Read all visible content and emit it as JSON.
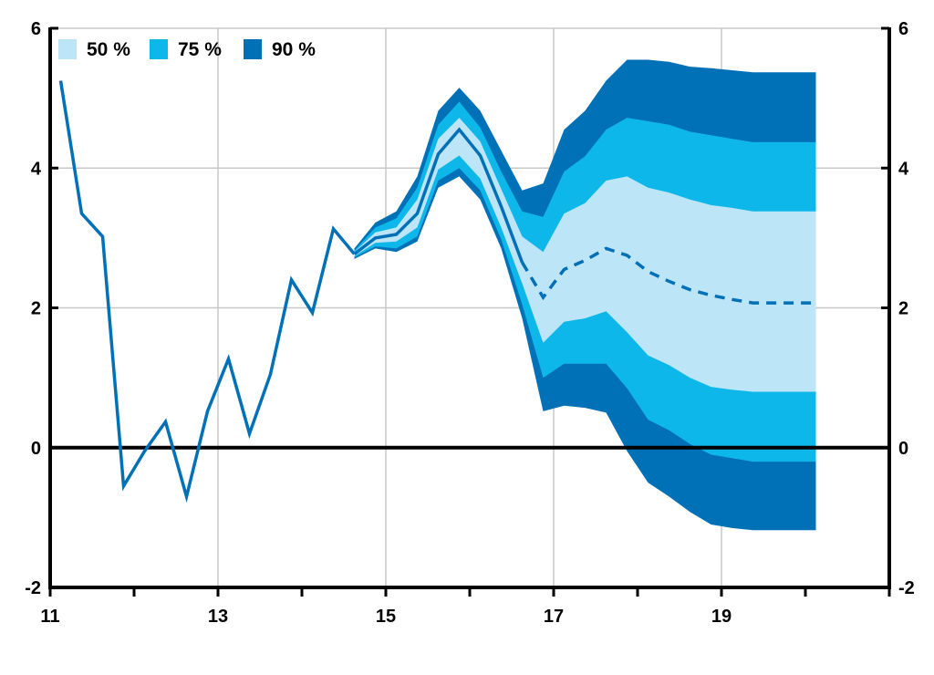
{
  "chart_data": {
    "type": "area",
    "xlim": [
      11,
      21.0
    ],
    "ylim": [
      -2,
      6
    ],
    "x_ticks": [
      11,
      13,
      15,
      17,
      19
    ],
    "x_tick_labels": [
      "11",
      "13",
      "15",
      "17",
      "19"
    ],
    "y_ticks": [
      -2,
      0,
      2,
      4,
      6
    ],
    "y_tick_labels_left": [
      "-2",
      "0",
      "2",
      "4",
      "6"
    ],
    "y_tick_labels_right": [
      "-2",
      "0",
      "2",
      "4",
      "6"
    ],
    "grid": true,
    "legend_position": "top-left",
    "legend": [
      {
        "label": "50 %",
        "color": "#bde5f8"
      },
      {
        "label": "75 %",
        "color": "#0db7ea"
      },
      {
        "label": "90 %",
        "color": "#0071b7"
      }
    ],
    "colors": {
      "line": "#0071b7",
      "fan_50": "#bde5f8",
      "fan_75": "#0db7ea",
      "fan_90": "#0071b7",
      "projection_line": "#0071b7",
      "zero_line": "#000000",
      "grid": "#c8c8c8"
    },
    "series": [
      {
        "kind": "history",
        "x": [
          11.125,
          11.375,
          11.625,
          11.875,
          12.125,
          12.375,
          12.625,
          12.875,
          13.125,
          13.375,
          13.625,
          13.875,
          14.125,
          14.375,
          14.625
        ],
        "values": [
          5.25,
          3.35,
          3.02,
          -0.55,
          -0.05,
          0.37,
          -0.7,
          0.52,
          1.27,
          0.2,
          1.05,
          2.4,
          1.93,
          3.13,
          2.77
        ]
      },
      {
        "kind": "projection-solid",
        "x": [
          14.625,
          14.875,
          15.125,
          15.375,
          15.625,
          15.875,
          16.125,
          16.375,
          16.625
        ],
        "values": [
          2.77,
          3.0,
          3.05,
          3.35,
          4.2,
          4.55,
          4.18,
          3.45,
          2.65
        ]
      },
      {
        "kind": "projection-dashed",
        "x": [
          16.625,
          16.875,
          17.125,
          17.375,
          17.625,
          17.875,
          18.125,
          18.375,
          18.625,
          18.875,
          19.125,
          19.375,
          19.625,
          19.875,
          20.125
        ],
        "values": [
          2.65,
          2.15,
          2.55,
          2.68,
          2.85,
          2.75,
          2.52,
          2.38,
          2.26,
          2.18,
          2.12,
          2.07,
          2.07,
          2.07,
          2.07
        ]
      }
    ],
    "fan": {
      "x": [
        14.625,
        14.875,
        15.125,
        15.375,
        15.625,
        15.875,
        16.125,
        16.375,
        16.625,
        16.875,
        17.125,
        17.375,
        17.625,
        17.875,
        18.125,
        18.375,
        18.625,
        18.875,
        19.125,
        19.375,
        19.625,
        19.875,
        20.125
      ],
      "p90_low": [
        2.7,
        2.85,
        2.8,
        2.95,
        3.72,
        3.88,
        3.55,
        2.85,
        1.85,
        0.52,
        0.6,
        0.57,
        0.5,
        -0.05,
        -0.5,
        -0.7,
        -0.92,
        -1.1,
        -1.15,
        -1.18,
        -1.18,
        -1.18,
        -1.18
      ],
      "p75_low": [
        2.72,
        2.88,
        2.85,
        3.02,
        3.82,
        4.0,
        3.68,
        2.98,
        2.05,
        1.0,
        1.2,
        1.2,
        1.2,
        0.85,
        0.4,
        0.25,
        0.05,
        -0.1,
        -0.15,
        -0.2,
        -0.2,
        -0.2,
        -0.2
      ],
      "p50_low": [
        2.74,
        2.93,
        2.95,
        3.15,
        3.98,
        4.18,
        3.85,
        3.15,
        2.35,
        1.5,
        1.8,
        1.85,
        1.95,
        1.65,
        1.32,
        1.18,
        1.0,
        0.87,
        0.83,
        0.8,
        0.8,
        0.8,
        0.8
      ],
      "p50_high": [
        2.8,
        3.08,
        3.15,
        3.55,
        4.42,
        4.72,
        4.38,
        3.7,
        3.02,
        2.8,
        3.35,
        3.5,
        3.82,
        3.88,
        3.72,
        3.65,
        3.55,
        3.47,
        3.43,
        3.38,
        3.38,
        3.38,
        3.38
      ],
      "p75_high": [
        2.82,
        3.15,
        3.28,
        3.72,
        4.62,
        4.95,
        4.58,
        3.95,
        3.38,
        3.3,
        3.95,
        4.17,
        4.55,
        4.72,
        4.67,
        4.62,
        4.52,
        4.47,
        4.42,
        4.37,
        4.37,
        4.37,
        4.37
      ],
      "p90_high": [
        2.85,
        3.22,
        3.38,
        3.88,
        4.82,
        5.15,
        4.82,
        4.25,
        3.68,
        3.78,
        4.55,
        4.82,
        5.25,
        5.55,
        5.55,
        5.52,
        5.45,
        5.43,
        5.4,
        5.37,
        5.37,
        5.37,
        5.37
      ]
    }
  }
}
